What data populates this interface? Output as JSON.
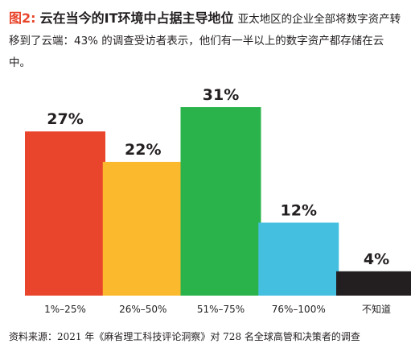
{
  "header": {
    "figure_label": "图2:",
    "title": "云在当今的IT环境中占据主导地位",
    "description": "亚太地区的企业全部将数字资产转移到了云端：43% 的调查受访者表示，他们有一半以上的数字资产都存储在云中。"
  },
  "chart_data": {
    "type": "bar",
    "categories": [
      "1%–25%",
      "26%–50%",
      "51%–75%",
      "76%–100%",
      "不知道"
    ],
    "values": [
      27,
      22,
      31,
      12,
      4
    ],
    "value_labels": [
      "27%",
      "22%",
      "31%",
      "12%",
      "4%"
    ],
    "colors": [
      "#e8452c",
      "#fbb92d",
      "#2bb34b",
      "#44bfe0",
      "#231f20"
    ],
    "ylim": [
      0,
      31
    ],
    "title": "",
    "xlabel": "",
    "ylabel": ""
  },
  "source": "资料来源：2021 年《麻省理工科技评论洞察》对 728 名全球高管和决策者的调查"
}
